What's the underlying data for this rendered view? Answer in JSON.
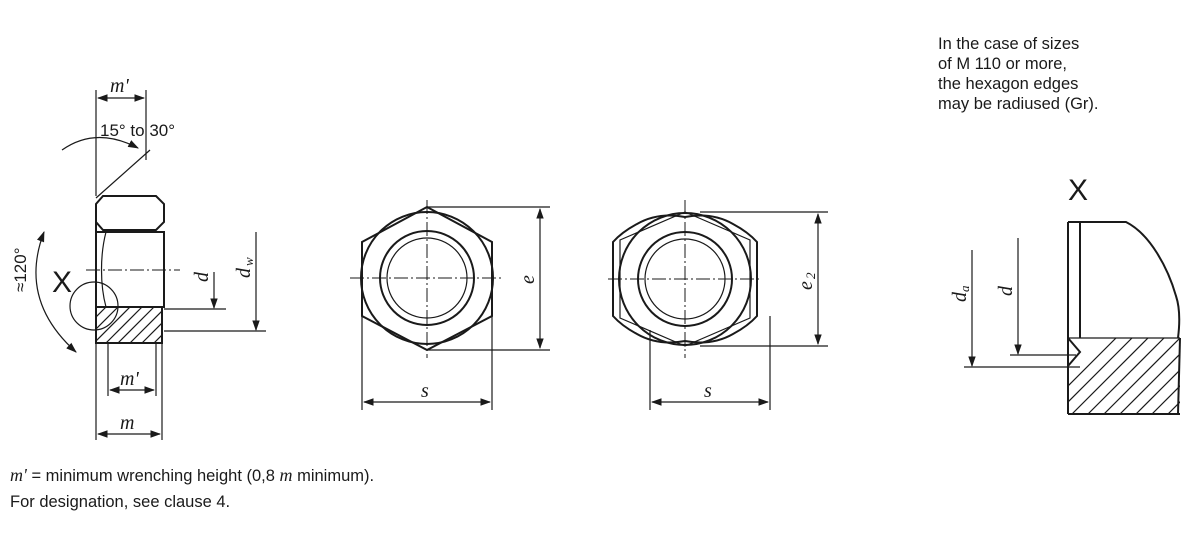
{
  "labels": {
    "m_prime": "m'",
    "m": "m",
    "angle_top": "15° to 30°",
    "angle_side": "≈120°",
    "detail_mark": "X",
    "d": "d",
    "dw_main": "d",
    "dw_sub": "w",
    "e": "e",
    "e2_main": "e",
    "e2_sub": "2",
    "s": "s",
    "da_main": "d",
    "da_sub": "a"
  },
  "note": {
    "lines": [
      "In the case of sizes",
      "of M 110 or more,",
      "the hexagon edges",
      "may be radiused (Gr)."
    ]
  },
  "caption": {
    "var": "m'",
    "definition": " = minimum wrenching height (0,8 ",
    "var2": "m",
    "definition_end": " minimum).",
    "line2": "For designation, see clause 4."
  }
}
